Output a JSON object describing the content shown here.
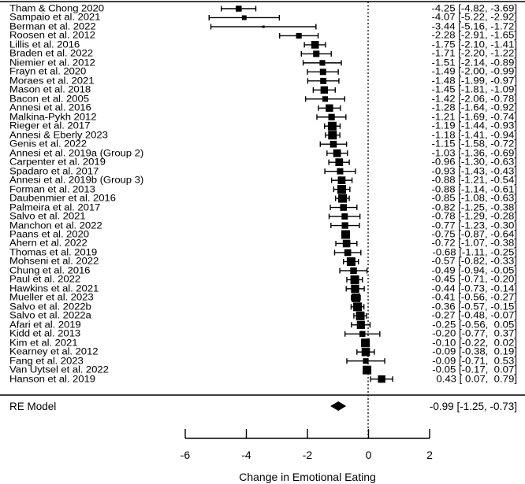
{
  "chart_data": {
    "type": "forest",
    "title": "",
    "xlabel": "Change in Emotional Eating",
    "ylabel": "",
    "xlim": [
      -6,
      2
    ],
    "xticks": [
      -6,
      -4,
      -2,
      0,
      2
    ],
    "reference_line": 0,
    "studies": [
      {
        "label": "Tham & Chong 2020",
        "est": -4.25,
        "lo": -4.82,
        "hi": -3.69,
        "text": "-4.25 [-4.82, -3.69]"
      },
      {
        "label": "Sampaio et al. 2021",
        "est": -4.07,
        "lo": -5.22,
        "hi": -2.92,
        "text": "-4.07 [-5.22, -2.92]"
      },
      {
        "label": "Berman et al. 2022",
        "est": -3.44,
        "lo": -5.16,
        "hi": -1.72,
        "text": "-3.44 [-5.16, -1.72]"
      },
      {
        "label": "Roosen et al. 2012",
        "est": -2.28,
        "lo": -2.91,
        "hi": -1.65,
        "text": "-2.28 [-2.91, -1.65]"
      },
      {
        "label": "Lillis et al. 2016",
        "est": -1.75,
        "lo": -2.1,
        "hi": -1.41,
        "text": "-1.75 [-2.10, -1.41]"
      },
      {
        "label": "Braden et al. 2022",
        "est": -1.71,
        "lo": -2.2,
        "hi": -1.22,
        "text": "-1.71 [-2.20, -1.22]"
      },
      {
        "label": "Niemier et al. 2012",
        "est": -1.51,
        "lo": -2.14,
        "hi": -0.89,
        "text": "-1.51 [-2.14, -0.89]"
      },
      {
        "label": "Frayn et al. 2020",
        "est": -1.49,
        "lo": -2.0,
        "hi": -0.99,
        "text": "-1.49 [-2.00, -0.99]"
      },
      {
        "label": "Moraes et al. 2021",
        "est": -1.48,
        "lo": -1.99,
        "hi": -0.97,
        "text": "-1.48 [-1.99, -0.97]"
      },
      {
        "label": "Mason et al. 2018",
        "est": -1.45,
        "lo": -1.81,
        "hi": -1.09,
        "text": "-1.45 [-1.81, -1.09]"
      },
      {
        "label": "Bacon et al. 2005",
        "est": -1.42,
        "lo": -2.06,
        "hi": -0.78,
        "text": "-1.42 [-2.06, -0.78]"
      },
      {
        "label": "Annesi et al. 2016",
        "est": -1.28,
        "lo": -1.64,
        "hi": -0.92,
        "text": "-1.28 [-1.64, -0.92]"
      },
      {
        "label": "Malkina-Pykh 2012",
        "est": -1.21,
        "lo": -1.69,
        "hi": -0.74,
        "text": "-1.21 [-1.69, -0.74]"
      },
      {
        "label": "Rieger et al. 2017",
        "est": -1.19,
        "lo": -1.44,
        "hi": -0.93,
        "text": "-1.19 [-1.44, -0.93]"
      },
      {
        "label": "Annesi & Eberly 2023",
        "est": -1.18,
        "lo": -1.41,
        "hi": -0.94,
        "text": "-1.18 [-1.41, -0.94]"
      },
      {
        "label": "Genis et al. 2022",
        "est": -1.15,
        "lo": -1.58,
        "hi": -0.72,
        "text": "-1.15 [-1.58, -0.72]"
      },
      {
        "label": "Annesi et al. 2019a (Group 2)",
        "est": -1.03,
        "lo": -1.36,
        "hi": -0.69,
        "text": "-1.03 [-1.36, -0.69]"
      },
      {
        "label": "Carpenter et al. 2019",
        "est": -0.96,
        "lo": -1.3,
        "hi": -0.63,
        "text": "-0.96 [-1.30, -0.63]"
      },
      {
        "label": "Spadaro et al. 2017",
        "est": -0.93,
        "lo": -1.43,
        "hi": -0.43,
        "text": "-0.93 [-1.43, -0.43]"
      },
      {
        "label": "Annesi et al. 2019b (Group 3)",
        "est": -0.88,
        "lo": -1.21,
        "hi": -0.54,
        "text": "-0.88 [-1.21, -0.54]"
      },
      {
        "label": "Forman et al. 2013",
        "est": -0.88,
        "lo": -1.14,
        "hi": -0.61,
        "text": "-0.88 [-1.14, -0.61]"
      },
      {
        "label": "Daubenmier et al. 2016",
        "est": -0.85,
        "lo": -1.08,
        "hi": -0.63,
        "text": "-0.85 [-1.08, -0.63]"
      },
      {
        "label": "Palmeira et al. 2017",
        "est": -0.82,
        "lo": -1.25,
        "hi": -0.38,
        "text": "-0.82 [-1.25, -0.38]"
      },
      {
        "label": "Salvo et al. 2021",
        "est": -0.78,
        "lo": -1.29,
        "hi": -0.28,
        "text": "-0.78 [-1.29, -0.28]"
      },
      {
        "label": "Manchon et al. 2022",
        "est": -0.77,
        "lo": -1.23,
        "hi": -0.3,
        "text": "-0.77 [-1.23, -0.30]"
      },
      {
        "label": "Paans et al. 2020",
        "est": -0.75,
        "lo": -0.87,
        "hi": -0.64,
        "text": "-0.75 [-0.87, -0.64]"
      },
      {
        "label": "Ahern et al. 2022",
        "est": -0.72,
        "lo": -1.07,
        "hi": -0.38,
        "text": "-0.72 [-1.07, -0.38]"
      },
      {
        "label": "Thomas et al. 2019",
        "est": -0.68,
        "lo": -1.11,
        "hi": -0.25,
        "text": "-0.68 [-1.11, -0.25]"
      },
      {
        "label": "Mohseni et al. 2022",
        "est": -0.57,
        "lo": -0.82,
        "hi": -0.33,
        "text": "-0.57 [-0.82, -0.33]"
      },
      {
        "label": "Chung et al. 2016",
        "est": -0.49,
        "lo": -0.94,
        "hi": -0.05,
        "text": "-0.49 [-0.94, -0.05]"
      },
      {
        "label": "Paul et al. 2022",
        "est": -0.45,
        "lo": -0.71,
        "hi": -0.2,
        "text": "-0.45 [-0.71, -0.20]"
      },
      {
        "label": "Hawkins et al. 2021",
        "est": -0.44,
        "lo": -0.73,
        "hi": -0.14,
        "text": "-0.44 [-0.73, -0.14]"
      },
      {
        "label": "Mueller et al. 2023",
        "est": -0.41,
        "lo": -0.56,
        "hi": -0.27,
        "text": "-0.41 [-0.56, -0.27]"
      },
      {
        "label": "Salvo et al. 2022b",
        "est": -0.36,
        "lo": -0.57,
        "hi": -0.15,
        "text": "-0.36 [-0.57, -0.15]"
      },
      {
        "label": "Salvo et al. 2022a",
        "est": -0.27,
        "lo": -0.48,
        "hi": -0.07,
        "text": "-0.27 [-0.48, -0.07]"
      },
      {
        "label": "Afari et al. 2019",
        "est": -0.25,
        "lo": -0.56,
        "hi": 0.05,
        "text": "-0.25 [-0.56,  0.05]"
      },
      {
        "label": "Kidd et al. 2013",
        "est": -0.2,
        "lo": -0.77,
        "hi": 0.37,
        "text": "-0.20 [-0.77,  0.37]"
      },
      {
        "label": "Kim et al. 2021",
        "est": -0.1,
        "lo": -0.22,
        "hi": 0.02,
        "text": "-0.10 [-0.22,  0.02]"
      },
      {
        "label": "Kearney et al. 2012",
        "est": -0.09,
        "lo": -0.38,
        "hi": 0.19,
        "text": "-0.09 [-0.38,  0.19]"
      },
      {
        "label": "Fang et al. 2023",
        "est": -0.09,
        "lo": -0.71,
        "hi": 0.53,
        "text": "-0.09 [-0.71,  0.53]"
      },
      {
        "label": "Van Uytsel et al. 2022",
        "est": -0.05,
        "lo": -0.17,
        "hi": 0.07,
        "text": "-0.05 [-0.17,  0.07]"
      },
      {
        "label": "Hanson et al. 2019",
        "est": 0.43,
        "lo": 0.07,
        "hi": 0.79,
        "text": " 0.43 [ 0.07,  0.79]"
      }
    ],
    "summary": {
      "label": "RE Model",
      "est": -0.99,
      "lo": -1.25,
      "hi": -0.73,
      "text": "-0.99 [-1.25, -0.73]"
    }
  }
}
